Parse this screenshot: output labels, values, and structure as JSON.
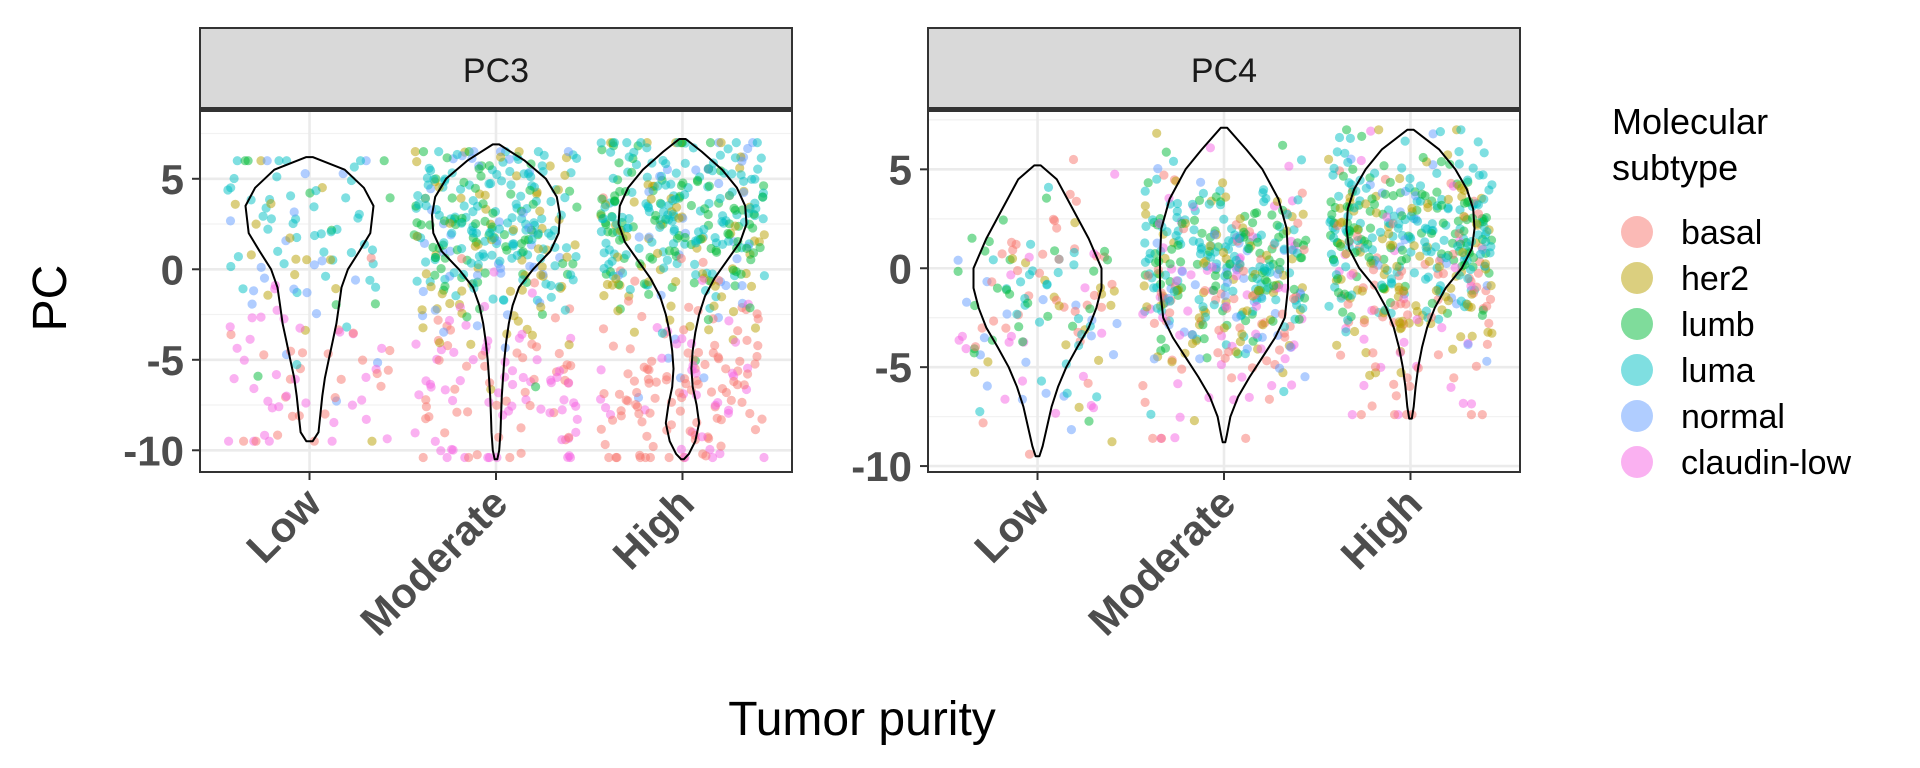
{
  "chart_data": {
    "type": "scatter",
    "subtype": "faceted jittered scatter with violin overlay",
    "x_title": "Tumor purity",
    "y_title": "PC",
    "categories": [
      "Low",
      "Moderate",
      "High"
    ],
    "legend": {
      "title_line1": "Molecular",
      "title_line2": "subtype",
      "placement": "right",
      "entries": [
        {
          "name": "basal",
          "color": "#F8766D"
        },
        {
          "name": "her2",
          "color": "#B79F00"
        },
        {
          "name": "lumb",
          "color": "#00BA38"
        },
        {
          "name": "luma",
          "color": "#00BFC4"
        },
        {
          "name": "normal",
          "color": "#619CFF"
        },
        {
          "name": "claudin-low",
          "color": "#F564E3"
        }
      ]
    },
    "grid": true,
    "facets": [
      {
        "title": "PC3",
        "ylim": [
          -11.2,
          8.8
        ],
        "y_ticks": [
          5,
          0,
          -5,
          -10
        ],
        "y_tick_labels": [
          "5",
          "0",
          "-5",
          "-10"
        ],
        "violins": [
          {
            "category": "Low",
            "min": -9.5,
            "max": 6.2,
            "profile": [
              [
                6.2,
                0.05
              ],
              [
                5.5,
                0.55
              ],
              [
                4.5,
                0.85
              ],
              [
                3.5,
                1.0
              ],
              [
                2.0,
                0.95
              ],
              [
                1.0,
                0.78
              ],
              [
                0,
                0.6
              ],
              [
                -1,
                0.5
              ],
              [
                -2,
                0.46
              ],
              [
                -3,
                0.42
              ],
              [
                -4,
                0.36
              ],
              [
                -5,
                0.3
              ],
              [
                -6,
                0.24
              ],
              [
                -7,
                0.2
              ],
              [
                -8,
                0.17
              ],
              [
                -9,
                0.14
              ],
              [
                -9.5,
                0.05
              ]
            ]
          },
          {
            "category": "Moderate",
            "min": -10.5,
            "max": 6.9,
            "profile": [
              [
                6.9,
                0.05
              ],
              [
                6,
                0.45
              ],
              [
                5,
                0.78
              ],
              [
                4,
                0.95
              ],
              [
                3,
                1.0
              ],
              [
                2,
                0.98
              ],
              [
                1,
                0.85
              ],
              [
                0,
                0.58
              ],
              [
                -1,
                0.36
              ],
              [
                -2,
                0.26
              ],
              [
                -3,
                0.2
              ],
              [
                -4,
                0.16
              ],
              [
                -5,
                0.13
              ],
              [
                -6,
                0.11
              ],
              [
                -7,
                0.09
              ],
              [
                -8,
                0.08
              ],
              [
                -9,
                0.07
              ],
              [
                -10,
                0.05
              ],
              [
                -10.5,
                0.02
              ]
            ]
          },
          {
            "category": "High",
            "min": -10.5,
            "max": 7.2,
            "profile": [
              [
                7.2,
                0.05
              ],
              [
                6.5,
                0.3
              ],
              [
                5.5,
                0.62
              ],
              [
                4.5,
                0.85
              ],
              [
                3.5,
                0.98
              ],
              [
                2.5,
                1.0
              ],
              [
                1.5,
                0.9
              ],
              [
                0.5,
                0.7
              ],
              [
                -0.5,
                0.5
              ],
              [
                -1.5,
                0.35
              ],
              [
                -2.5,
                0.26
              ],
              [
                -3.5,
                0.2
              ],
              [
                -4.5,
                0.16
              ],
              [
                -5.5,
                0.14
              ],
              [
                -6.5,
                0.16
              ],
              [
                -7.5,
                0.22
              ],
              [
                -8.5,
                0.26
              ],
              [
                -9.5,
                0.2
              ],
              [
                -10.2,
                0.1
              ],
              [
                -10.5,
                0.02
              ]
            ]
          }
        ],
        "point_groups": [
          {
            "category": "Low",
            "n": 150,
            "comp": {
              "basal": 0.17,
              "her2": 0.1,
              "lumb": 0.1,
              "luma": 0.25,
              "normal": 0.2,
              "claudin-low": 0.18
            },
            "center": 2.8,
            "spread": 4.5,
            "min": -9.5,
            "max": 6
          },
          {
            "category": "Moderate",
            "n": 420,
            "comp": {
              "basal": 0.14,
              "her2": 0.14,
              "lumb": 0.18,
              "luma": 0.32,
              "normal": 0.08,
              "claudin-low": 0.14
            },
            "center": 2.5,
            "spread": 4.0,
            "min": -10.4,
            "max": 6.5
          },
          {
            "category": "High",
            "n": 480,
            "comp": {
              "basal": 0.22,
              "her2": 0.14,
              "lumb": 0.22,
              "luma": 0.28,
              "normal": 0.06,
              "claudin-low": 0.08
            },
            "center": 2.8,
            "spread": 4.0,
            "min": -10.4,
            "max": 7
          }
        ]
      },
      {
        "title": "PC4",
        "ylim": [
          -10.3,
          8.0
        ],
        "y_ticks": [
          5,
          0,
          -5,
          -10
        ],
        "y_tick_labels": [
          "5",
          "0",
          "-5",
          "-10"
        ],
        "violins": [
          {
            "category": "Low",
            "min": -9.5,
            "max": 5.2,
            "profile": [
              [
                5.2,
                0.05
              ],
              [
                4.5,
                0.3
              ],
              [
                3,
                0.55
              ],
              [
                1.5,
                0.8
              ],
              [
                0,
                1.0
              ],
              [
                -1,
                1.0
              ],
              [
                -2,
                0.92
              ],
              [
                -3,
                0.8
              ],
              [
                -4,
                0.62
              ],
              [
                -5,
                0.45
              ],
              [
                -6,
                0.32
              ],
              [
                -7,
                0.22
              ],
              [
                -8,
                0.15
              ],
              [
                -9,
                0.08
              ],
              [
                -9.5,
                0.03
              ]
            ]
          },
          {
            "category": "Moderate",
            "min": -8.8,
            "max": 7.1,
            "profile": [
              [
                7.1,
                0.05
              ],
              [
                6,
                0.35
              ],
              [
                5,
                0.6
              ],
              [
                3.5,
                0.85
              ],
              [
                2,
                0.98
              ],
              [
                0.5,
                1.0
              ],
              [
                -1,
                1.0
              ],
              [
                -2.5,
                0.95
              ],
              [
                -3.5,
                0.8
              ],
              [
                -4.5,
                0.6
              ],
              [
                -5.5,
                0.4
              ],
              [
                -6.5,
                0.22
              ],
              [
                -7.5,
                0.1
              ],
              [
                -8.5,
                0.04
              ],
              [
                -8.8,
                0.02
              ]
            ]
          },
          {
            "category": "High",
            "min": -7.6,
            "max": 7.0,
            "profile": [
              [
                7.0,
                0.05
              ],
              [
                6,
                0.45
              ],
              [
                5,
                0.7
              ],
              [
                4,
                0.88
              ],
              [
                3,
                0.98
              ],
              [
                2,
                1.0
              ],
              [
                1,
                0.96
              ],
              [
                0,
                0.8
              ],
              [
                -1,
                0.55
              ],
              [
                -2,
                0.38
              ],
              [
                -3,
                0.26
              ],
              [
                -4,
                0.18
              ],
              [
                -5,
                0.12
              ],
              [
                -6,
                0.08
              ],
              [
                -7,
                0.05
              ],
              [
                -7.6,
                0.02
              ]
            ]
          }
        ],
        "point_groups": [
          {
            "category": "Low",
            "n": 140,
            "comp": {
              "basal": 0.2,
              "her2": 0.12,
              "lumb": 0.15,
              "luma": 0.22,
              "normal": 0.16,
              "claudin-low": 0.15
            },
            "center": -1.5,
            "spread": 4.2,
            "min": -9.4,
            "max": 5.5
          },
          {
            "category": "Moderate",
            "n": 430,
            "comp": {
              "basal": 0.14,
              "her2": 0.16,
              "lumb": 0.22,
              "luma": 0.3,
              "normal": 0.08,
              "claudin-low": 0.1
            },
            "center": 0.5,
            "spread": 3.8,
            "min": -8.6,
            "max": 7.2
          },
          {
            "category": "High",
            "n": 480,
            "comp": {
              "basal": 0.18,
              "her2": 0.2,
              "lumb": 0.22,
              "luma": 0.28,
              "normal": 0.06,
              "claudin-low": 0.06
            },
            "center": 2.0,
            "spread": 3.2,
            "min": -7.4,
            "max": 7
          }
        ]
      }
    ]
  }
}
